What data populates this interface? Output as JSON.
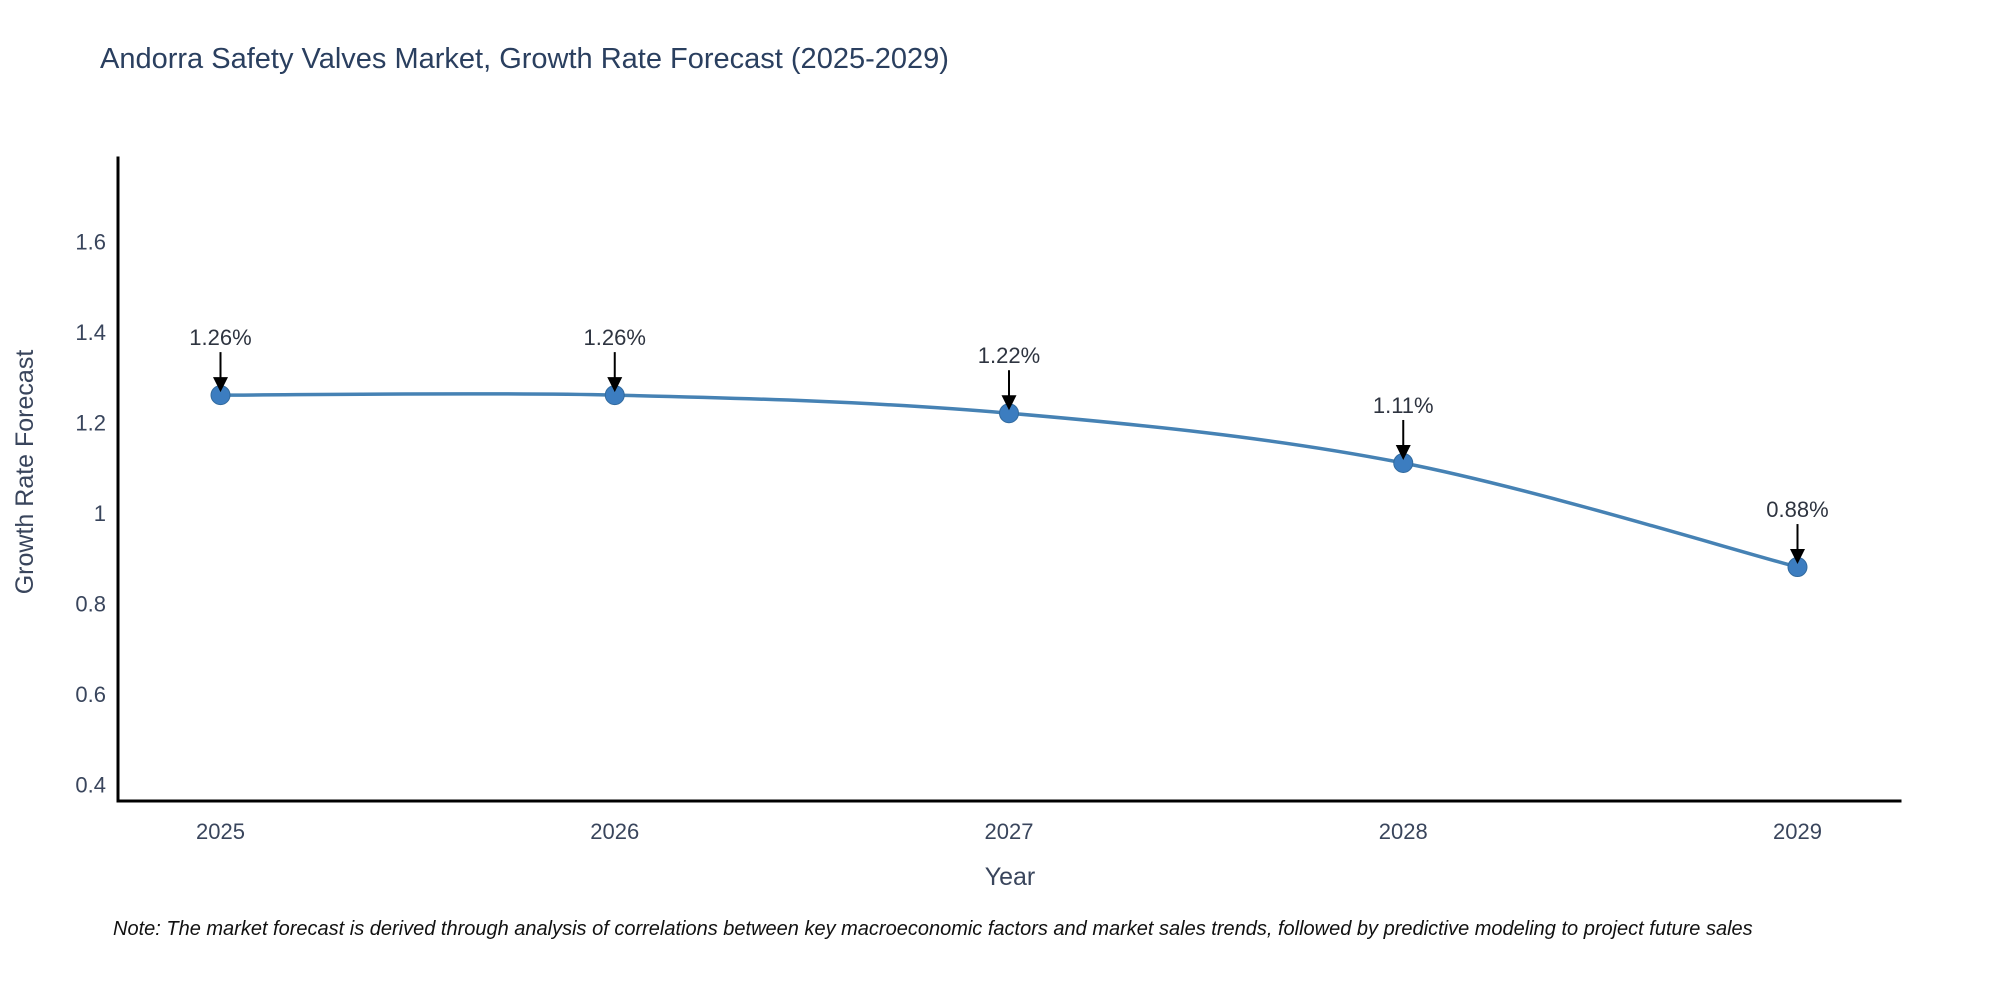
{
  "chart": {
    "title": "Andorra Safety Valves Market, Growth Rate Forecast (2025-2029)",
    "xlabel": "Year",
    "ylabel": "Growth Rate Forecast",
    "note": "Note: The market forecast is derived through analysis of correlations between key macroeconomic factors and market sales trends, followed by predictive modeling to project future sales",
    "colors": {
      "line": "#4682b4",
      "marker_fill": "#3c7dc0",
      "marker_edge": "#316a9e",
      "axis": "#000000",
      "title_text": "#2a3f5f",
      "tick_text": "#39455c",
      "annotation_text": "#2e3440",
      "arrow": "#000000",
      "note_text": "#111111",
      "background": "#ffffff"
    }
  },
  "chart_data": {
    "type": "line",
    "title": "Andorra Safety Valves Market, Growth Rate Forecast (2025-2029)",
    "xlabel": "Year",
    "ylabel": "Growth Rate Forecast",
    "x": [
      2025,
      2026,
      2027,
      2028,
      2029
    ],
    "x_tick_labels": [
      "2025",
      "2026",
      "2027",
      "2028",
      "2029"
    ],
    "series": [
      {
        "name": "Growth Rate Forecast",
        "values": [
          1.26,
          1.26,
          1.22,
          1.11,
          0.88
        ]
      }
    ],
    "point_labels": [
      "1.26%",
      "1.26%",
      "1.22%",
      "1.11%",
      "0.88%"
    ],
    "y_ticks": [
      1.6,
      1.4,
      1.2,
      1,
      0.8,
      0.6,
      0.4
    ],
    "y_tick_labels": [
      "1.6",
      "1.4",
      "1.2",
      "1",
      "0.8",
      "0.6",
      "0.4"
    ],
    "xlim": [
      2024.74,
      2029.26
    ],
    "ylim": [
      0.363,
      1.784
    ],
    "grid": false,
    "legend": "none",
    "annotations": "value labels with downward arrows pointing at each data point",
    "curve": "smooth-spline"
  }
}
